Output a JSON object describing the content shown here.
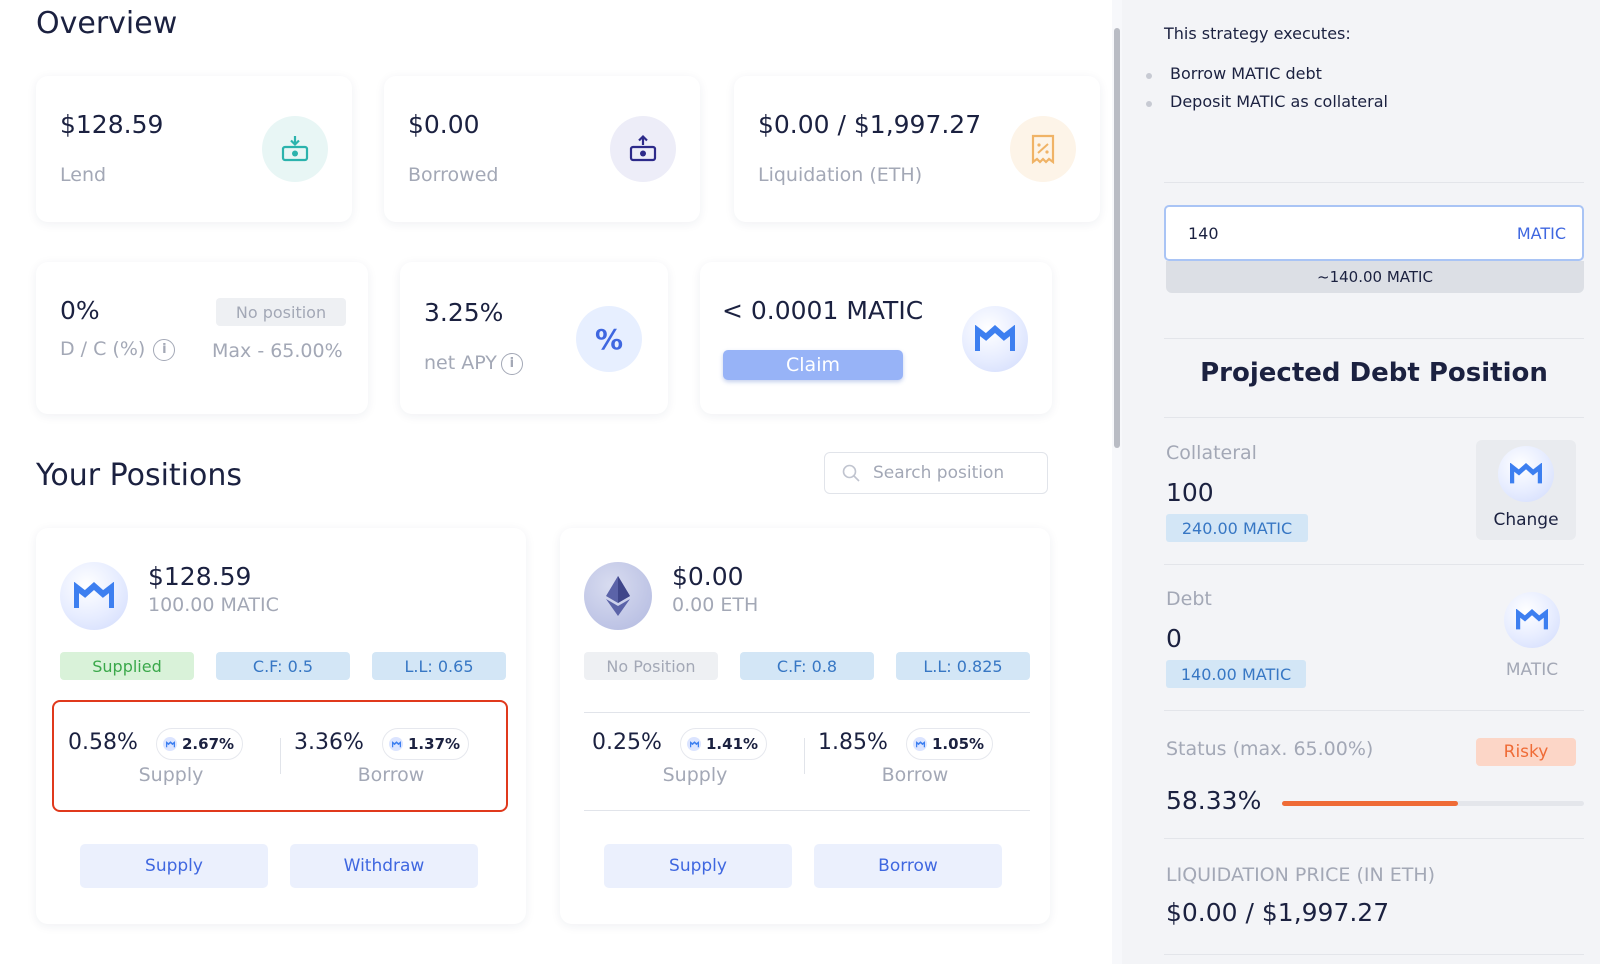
{
  "overview": {
    "title": "Overview",
    "lend": {
      "value": "$128.59",
      "label": "Lend"
    },
    "borrowed": {
      "value": "$0.00",
      "label": "Borrowed"
    },
    "liquidation": {
      "value": "$0.00 / $1,997.27",
      "label": "Liquidation (ETH)"
    },
    "dc": {
      "value": "0%",
      "label": "D / C (%)",
      "badge": "No position",
      "max": "Max - 65.00%"
    },
    "apy": {
      "value": "3.25%",
      "label": "net APY",
      "symbol": "%"
    },
    "reward": {
      "value": "< 0.0001 MATIC",
      "claim_label": "Claim"
    }
  },
  "positions": {
    "title": "Your Positions",
    "search_placeholder": "Search position",
    "cards": [
      {
        "value": "$128.59",
        "amount": "100.00 MATIC",
        "token": "MATIC",
        "status": "Supplied",
        "cf": "C.F: 0.5",
        "ll": "L.L: 0.65",
        "supply_rate": "0.58%",
        "supply_reward": "2.67%",
        "supply_label": "Supply",
        "borrow_rate": "3.36%",
        "borrow_reward": "1.37%",
        "borrow_label": "Borrow",
        "btn1": "Supply",
        "btn2": "Withdraw"
      },
      {
        "value": "$0.00",
        "amount": "0.00 ETH",
        "token": "ETH",
        "status": "No Position",
        "cf": "C.F: 0.8",
        "ll": "L.L: 0.825",
        "supply_rate": "0.25%",
        "supply_reward": "1.41%",
        "supply_label": "Supply",
        "borrow_rate": "1.85%",
        "borrow_reward": "1.05%",
        "borrow_label": "Borrow",
        "btn1": "Supply",
        "btn2": "Borrow"
      }
    ]
  },
  "strategy": {
    "title": "This strategy executes:",
    "steps": [
      "Borrow MATIC debt",
      "Deposit MATIC as collateral"
    ],
    "input_value": "140",
    "input_unit": "MATIC",
    "approx": "~140.00 MATIC"
  },
  "projected": {
    "title": "Projected Debt Position",
    "collateral": {
      "label": "Collateral",
      "value": "100",
      "tag": "240.00 MATIC",
      "action": "Change"
    },
    "debt": {
      "label": "Debt",
      "value": "0",
      "tag": "140.00 MATIC",
      "token": "MATIC"
    },
    "status": {
      "label": "Status (max. 65.00%)",
      "badge": "Risky",
      "value": "58.33%",
      "progress": 0.5833
    },
    "liq_price": {
      "label": "LIQUIDATION PRICE (IN ETH)",
      "value": "$0.00 / $1,997.27"
    }
  },
  "colors": {
    "accent": "#3f67e0",
    "risk": "#ef6b36",
    "highlight": "#e0391c"
  }
}
